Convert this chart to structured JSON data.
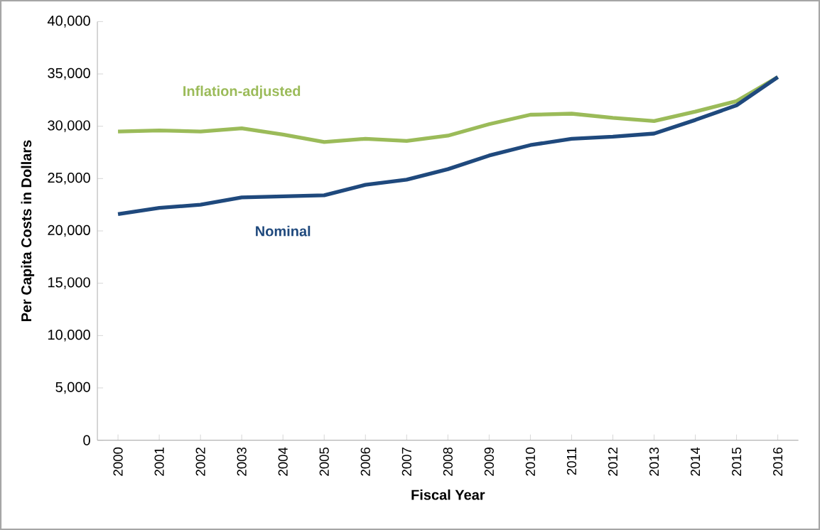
{
  "chart_data": {
    "type": "line",
    "xlabel": "Fiscal Year",
    "ylabel": "Per Capita Costs in Dollars",
    "categories": [
      "2000",
      "2001",
      "2002",
      "2003",
      "2004",
      "2005",
      "2006",
      "2007",
      "2008",
      "2009",
      "2010",
      "2011",
      "2012",
      "2013",
      "2014",
      "2015",
      "2016"
    ],
    "series": [
      {
        "name": "Inflation-adjusted",
        "color": "#9bbb59",
        "values": [
          29500,
          29600,
          29500,
          29800,
          29200,
          28500,
          28800,
          28600,
          29100,
          30200,
          31100,
          31200,
          30800,
          30500,
          31400,
          32400,
          34700
        ]
      },
      {
        "name": "Nominal",
        "color": "#1f497d",
        "values": [
          21600,
          22200,
          22500,
          23200,
          23300,
          23400,
          24400,
          24900,
          25900,
          27200,
          28200,
          28800,
          29000,
          29300,
          30600,
          32000,
          34700
        ]
      }
    ],
    "ylim": [
      0,
      40000
    ],
    "yticks": [
      {
        "value": 0,
        "label": "0"
      },
      {
        "value": 5000,
        "label": "5,000"
      },
      {
        "value": 10000,
        "label": "10,000"
      },
      {
        "value": 15000,
        "label": "15,000"
      },
      {
        "value": 20000,
        "label": "20,000"
      },
      {
        "value": 25000,
        "label": "25,000"
      },
      {
        "value": 30000,
        "label": "30,000"
      },
      {
        "value": 35000,
        "label": "35,000"
      },
      {
        "value": 40000,
        "label": "40,000"
      }
    ],
    "legend": false,
    "grid": false,
    "line_style": "solid"
  }
}
